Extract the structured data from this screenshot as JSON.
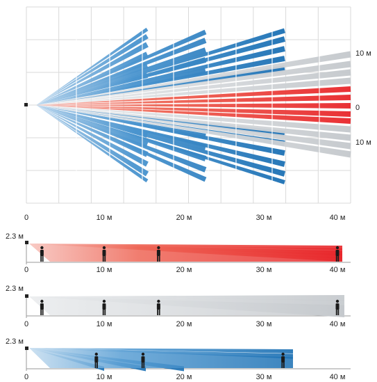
{
  "colors": {
    "red": "#e8262b",
    "blue": "#1a6fb3",
    "gray": "#c4c8cc",
    "grid": "#d9d9d9",
    "axis": "#9a9a9a",
    "text": "#222222"
  },
  "top_view": {
    "x_ticks": [
      "0",
      "10 м",
      "20 м",
      "30 м",
      "40 м"
    ],
    "right_labels": [
      "10 м",
      "0",
      "10 м"
    ]
  },
  "side_views": [
    {
      "height_label": "2.3 м",
      "x_ticks": [
        "0",
        "10 м",
        "20 м",
        "30 м",
        "40 м"
      ],
      "color": "red",
      "range_m": 41,
      "people_at_m": [
        2,
        10,
        17,
        40
      ]
    },
    {
      "height_label": "2.3 м",
      "x_ticks": [
        "0",
        "10 м",
        "20 м",
        "30 м",
        "40 м"
      ],
      "color": "gray",
      "range_m": 41,
      "people_at_m": [
        2,
        10,
        17,
        40
      ]
    },
    {
      "height_label": "2.3 м",
      "x_ticks": [
        "0",
        "10 м",
        "20 м",
        "30 м",
        "40 м"
      ],
      "color": "blue",
      "range_m": 35,
      "people_at_m": [
        9,
        15,
        33
      ]
    }
  ]
}
